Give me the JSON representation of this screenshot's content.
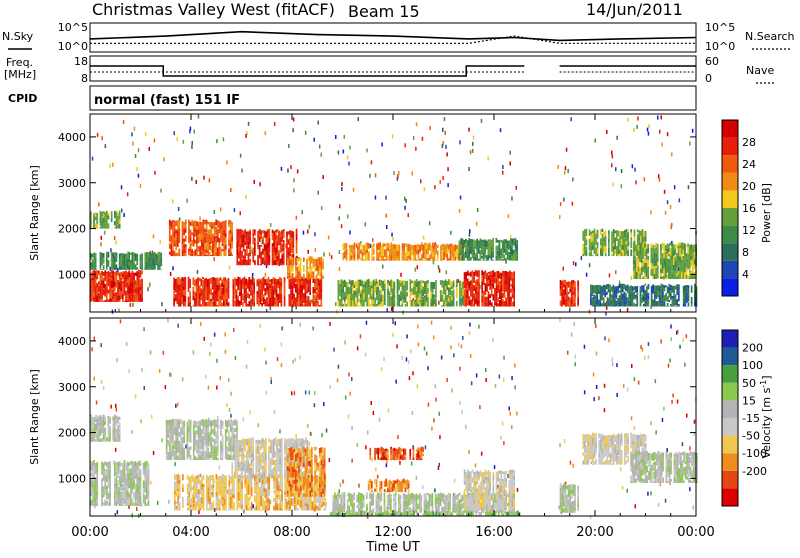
{
  "header": {
    "station": "Christmas Valley West (fitACF)",
    "beam": "Beam 15",
    "date": "14/Jun/2011"
  },
  "panel_labels": {
    "nsky": "N.Sky",
    "nsearch": "N.Search",
    "freq": "Freq.",
    "freq_unit": "[MHz]",
    "nave": "Nave",
    "cpid": "CPID",
    "cpid_value": "normal (fast) 151 IF"
  },
  "noise_axis": {
    "left_ticks": [
      "10^5",
      "10^0"
    ],
    "right_ticks": [
      "10^5",
      "10^0"
    ]
  },
  "freq_axis": {
    "left_ticks": [
      "18",
      "8"
    ],
    "right_ticks": [
      "60",
      "0"
    ]
  },
  "colors": {
    "power_scale": [
      "#0a1ee6",
      "#1e46b4",
      "#2d6e5a",
      "#3c8c46",
      "#64a03c",
      "#f0c81e",
      "#f08c14",
      "#f05a0f",
      "#e61e0a",
      "#d20000"
    ],
    "velocity_scale": [
      "#dc0000",
      "#e64614",
      "#f08c1e",
      "#f0c850",
      "#c8c8c8",
      "#b4b4b4",
      "#8cc850",
      "#46a03c",
      "#1e5a96",
      "#1e1eb4"
    ]
  },
  "chart_data": [
    {
      "type": "line",
      "name": "noise",
      "x_unit": "UT hours",
      "series": [
        {
          "name": "N.Sky",
          "x": [
            0,
            3,
            6,
            9,
            12,
            15,
            16.8,
            18.6,
            21,
            24
          ],
          "y": [
            0.45,
            0.55,
            0.7,
            0.6,
            0.55,
            0.45,
            0.5,
            0.4,
            0.45,
            0.5
          ]
        },
        {
          "name": "N.Search",
          "x": [
            0,
            6,
            12,
            15,
            16.8,
            18.6,
            24
          ],
          "y": [
            0.3,
            0.3,
            0.3,
            0.3,
            0.55,
            0.3,
            0.3
          ]
        }
      ]
    },
    {
      "type": "line",
      "name": "frequency-nave",
      "x_unit": "UT hours",
      "series": [
        {
          "name": "Freq.",
          "x": [
            0,
            2.9,
            2.9,
            14.9,
            14.9,
            17.2,
            18.6,
            24
          ],
          "y": [
            14,
            14,
            10,
            10,
            14,
            14,
            14,
            14
          ]
        },
        {
          "name": "Nave",
          "x": [
            0,
            24
          ],
          "y": [
            15,
            15
          ]
        }
      ]
    },
    {
      "type": "heatmap",
      "name": "power",
      "xlabel": "Time UT",
      "ylabel": "Slant Range [km]",
      "x_ticks": [
        "00:00",
        "04:00",
        "08:00",
        "12:00",
        "16:00",
        "20:00",
        "00:00"
      ],
      "xlim": [
        0,
        24
      ],
      "y_ticks": [
        "1000",
        "2000",
        "3000",
        "4000"
      ],
      "ylim": [
        180,
        4500
      ],
      "colorbar": {
        "label": "Power [dB]",
        "ticks": [
          "4",
          "8",
          "12",
          "16",
          "20",
          "24",
          "28"
        ]
      },
      "regions": [
        {
          "t0": 0,
          "t1": 2.2,
          "r0": 400,
          "r1": 1100,
          "level": 8
        },
        {
          "t0": 0,
          "t1": 2.8,
          "r0": 1100,
          "r1": 1500,
          "level": 3
        },
        {
          "t0": 0,
          "t1": 1.2,
          "r0": 2000,
          "r1": 2400,
          "level": 4
        },
        {
          "t0": 3,
          "t1": 5.6,
          "r0": 1400,
          "r1": 2200,
          "level": 7
        },
        {
          "t0": 3.3,
          "t1": 9.2,
          "r0": 300,
          "r1": 950,
          "level": 8
        },
        {
          "t0": 5.8,
          "t1": 8.2,
          "r0": 1200,
          "r1": 2000,
          "level": 8
        },
        {
          "t0": 7.8,
          "t1": 9.2,
          "r0": 900,
          "r1": 1400,
          "level": 6
        },
        {
          "t0": 10,
          "t1": 14.8,
          "r0": 1300,
          "r1": 1700,
          "level": 6
        },
        {
          "t0": 9.8,
          "t1": 14.8,
          "r0": 300,
          "r1": 900,
          "level": 4
        },
        {
          "t0": 14.8,
          "t1": 16.8,
          "r0": 300,
          "r1": 1100,
          "level": 8
        },
        {
          "t0": 14.6,
          "t1": 16.9,
          "r0": 1300,
          "r1": 1800,
          "level": 3
        },
        {
          "t0": 18.6,
          "t1": 19.3,
          "r0": 300,
          "r1": 900,
          "level": 8
        },
        {
          "t0": 19.5,
          "t1": 22,
          "r0": 1400,
          "r1": 2000,
          "level": 4
        },
        {
          "t0": 21.5,
          "t1": 24,
          "r0": 900,
          "r1": 1700,
          "level": 4
        },
        {
          "t0": 19.8,
          "t1": 24,
          "r0": 300,
          "r1": 800,
          "level": 2
        }
      ]
    },
    {
      "type": "heatmap",
      "name": "velocity",
      "xlabel": "Time UT",
      "ylabel": "Slant Range [km]",
      "x_ticks": [
        "00:00",
        "04:00",
        "08:00",
        "12:00",
        "16:00",
        "20:00",
        "00:00"
      ],
      "xlim": [
        0,
        24
      ],
      "y_ticks": [
        "1000",
        "2000",
        "3000",
        "4000"
      ],
      "ylim": [
        180,
        4500
      ],
      "colorbar": {
        "label": "Velocity [m s^-1]",
        "ticks": [
          "200",
          "100",
          "50",
          "15",
          "-15",
          "-50",
          "-100",
          "-200"
        ]
      },
      "regions": [
        {
          "t0": 0,
          "t1": 2.4,
          "r0": 400,
          "r1": 1400,
          "level": 5
        },
        {
          "t0": 0,
          "t1": 1.2,
          "r0": 1800,
          "r1": 2400,
          "level": 5
        },
        {
          "t0": 3,
          "t1": 5.8,
          "r0": 1400,
          "r1": 2300,
          "level": 5
        },
        {
          "t0": 3.2,
          "t1": 9.3,
          "r0": 300,
          "r1": 1100,
          "level": 3
        },
        {
          "t0": 5.6,
          "t1": 8.6,
          "r0": 1000,
          "r1": 1900,
          "level": 4
        },
        {
          "t0": 7.8,
          "t1": 9.3,
          "r0": 600,
          "r1": 1700,
          "level": 2
        },
        {
          "t0": 11,
          "t1": 13.2,
          "r0": 1400,
          "r1": 1700,
          "level": 1
        },
        {
          "t0": 11,
          "t1": 12.6,
          "r0": 700,
          "r1": 1000,
          "level": 2
        },
        {
          "t0": 9.6,
          "t1": 16.8,
          "r0": 250,
          "r1": 700,
          "level": 5
        },
        {
          "t0": 14.8,
          "t1": 16.8,
          "r0": 300,
          "r1": 1200,
          "level": 4
        },
        {
          "t0": 18.6,
          "t1": 19.3,
          "r0": 250,
          "r1": 900,
          "level": 5
        },
        {
          "t0": 19.5,
          "t1": 22,
          "r0": 1300,
          "r1": 2000,
          "level": 4
        },
        {
          "t0": 21.4,
          "t1": 24,
          "r0": 900,
          "r1": 1600,
          "level": 5
        },
        {
          "t0": 9.5,
          "t1": 17,
          "r0": 180,
          "r1": 300,
          "level": 6
        }
      ]
    }
  ]
}
